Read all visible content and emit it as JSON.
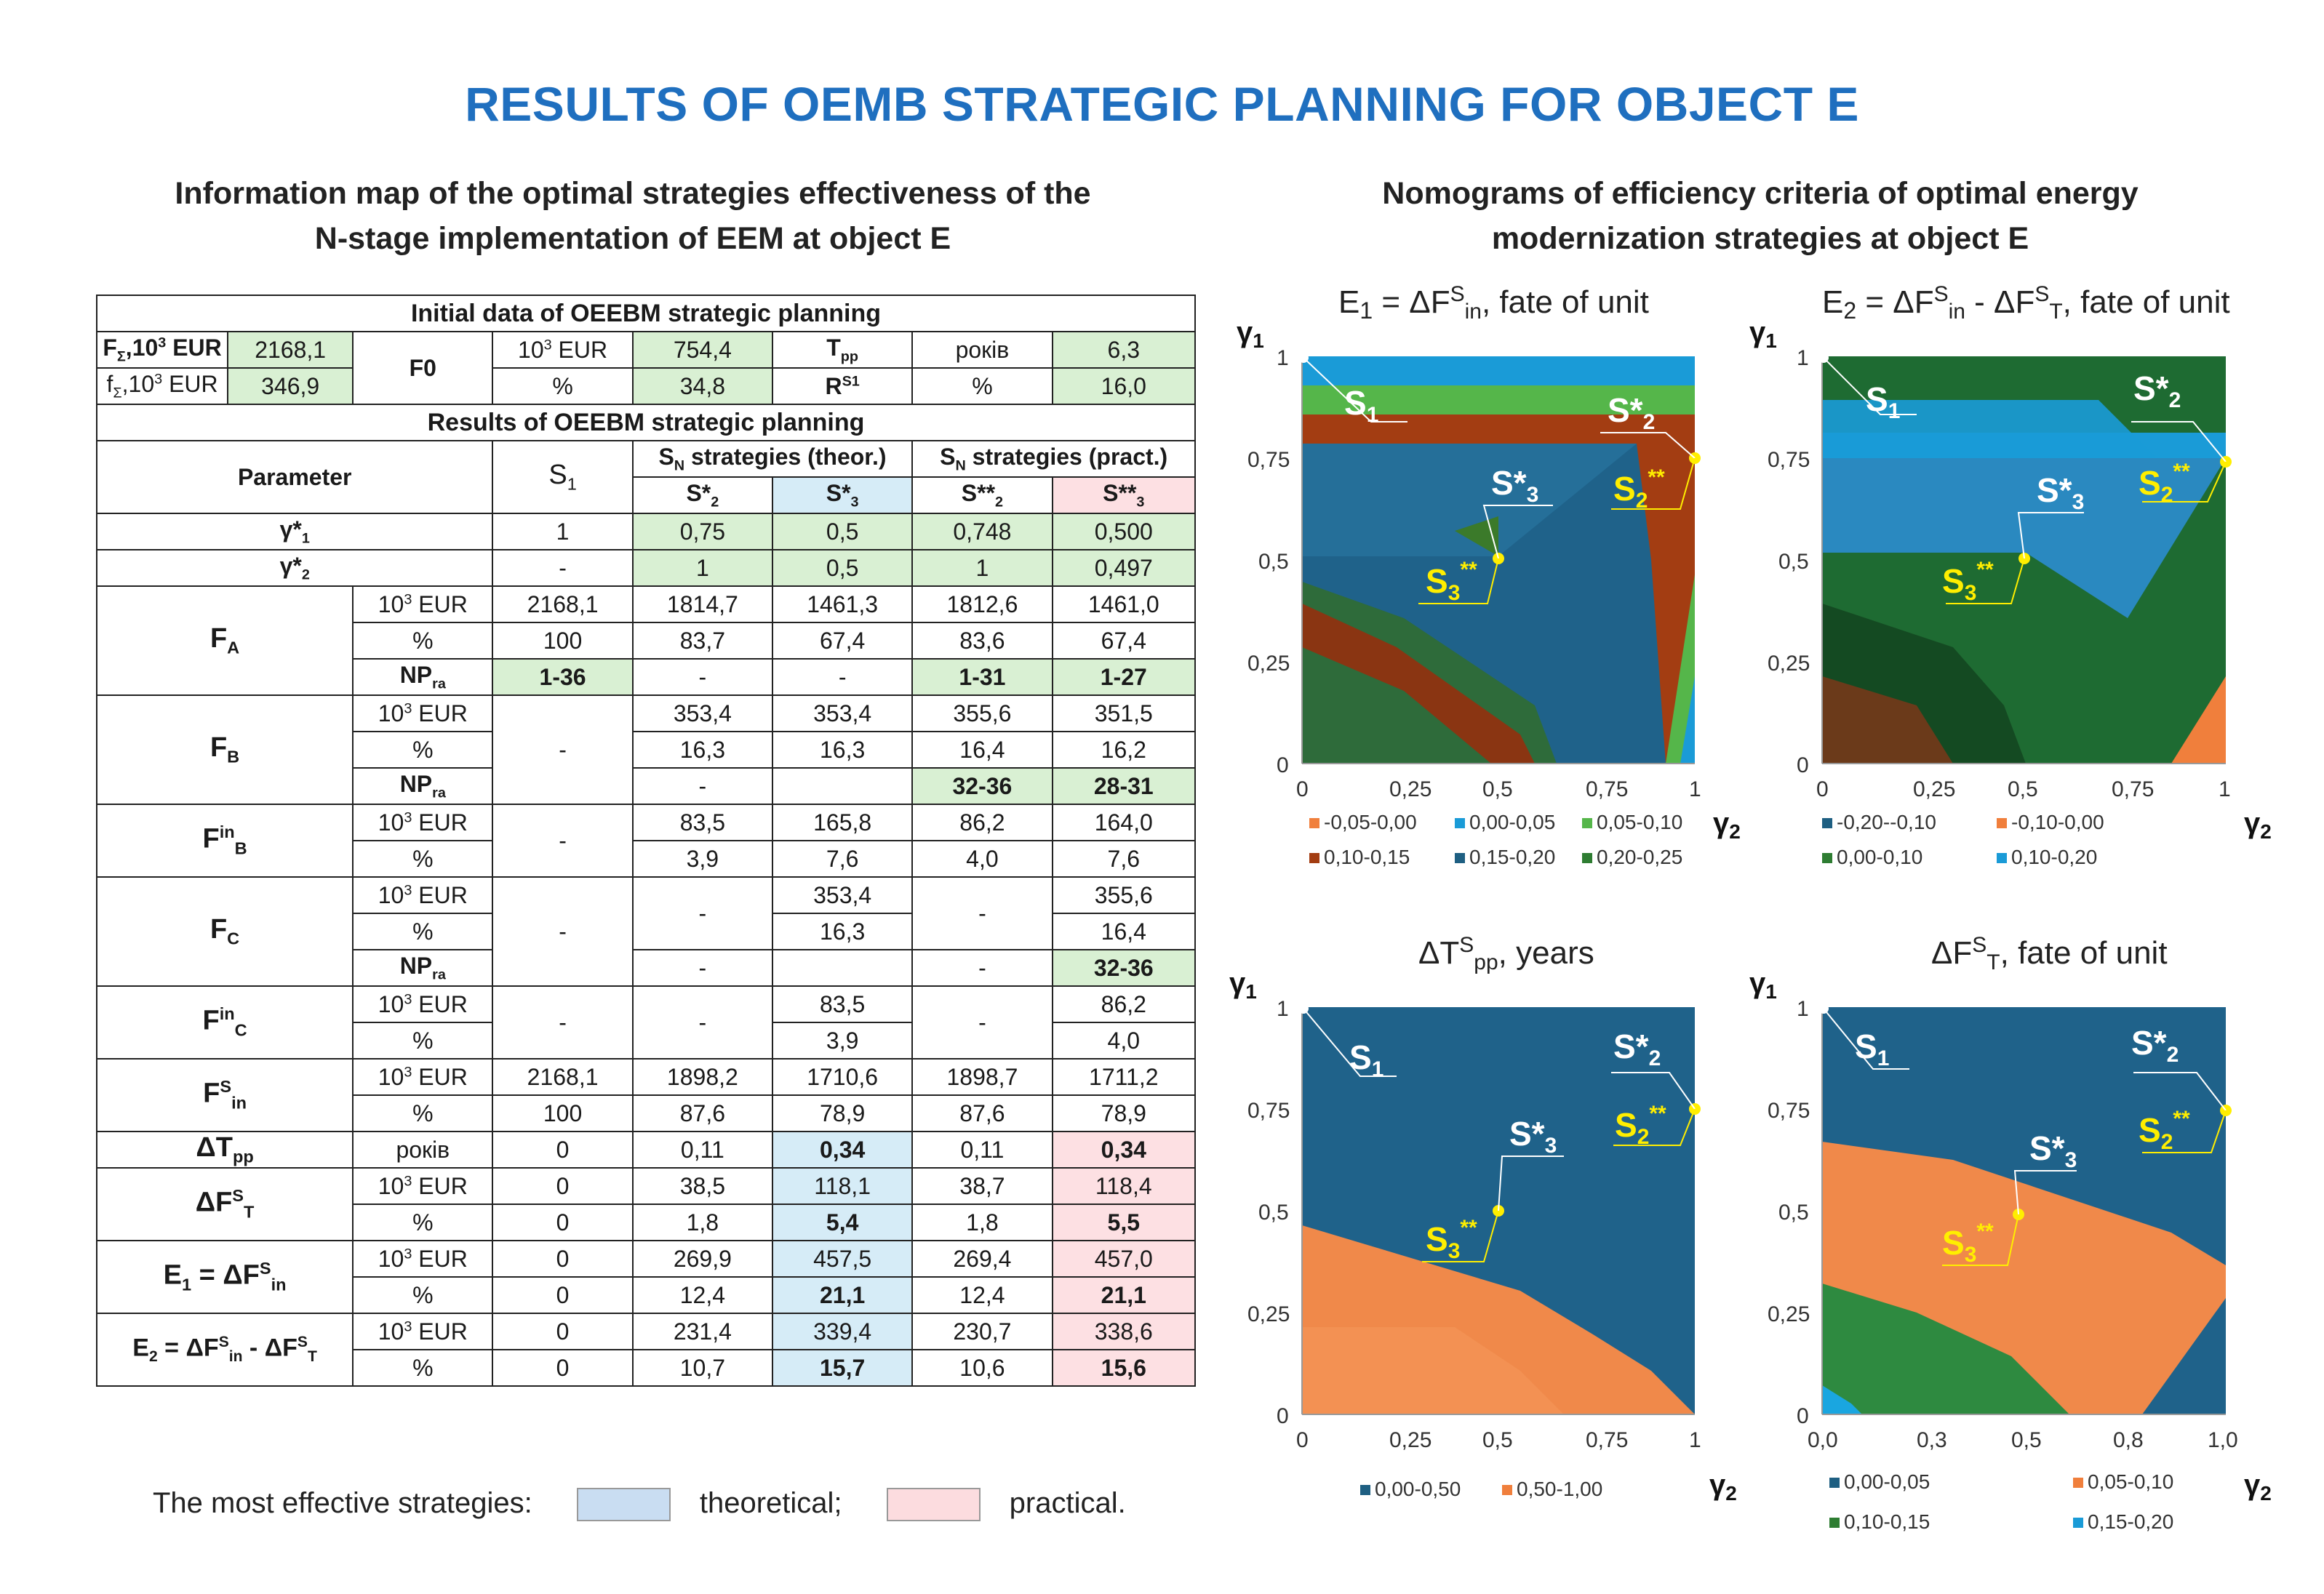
{
  "title": "RESULTS OF OEMB STRATEGIC PLANNING FOR OBJECT E",
  "left_heading": [
    "Information map of the optimal strategies effectiveness of the",
    "N-stage  implementation of EEM at object E"
  ],
  "right_heading": [
    "Nomograms of efficiency criteria of optimal energy",
    "modernization strategies at object E"
  ],
  "table": {
    "initial_title": "Initial data of OEEBM strategic planning",
    "results_title": "Results of OEEBM strategic planning",
    "f_sum_label": "F",
    "f_sum_value": "2168,1",
    "f_small_value": "346,9",
    "unit_eur": "EUR",
    "unit_pct": "%",
    "f0_label": "F0",
    "f0_eur": "754,4",
    "f0_pct": "34,8",
    "tpp_unit": "років",
    "tpp_value": "6,3",
    "rs1_value": "16,0",
    "param_label": "Parameter",
    "sn_theor": "strategies (theor.)",
    "sn_pract": "strategies (pract.)",
    "rows": {
      "g1": [
        "1",
        "0,75",
        "0,5",
        "0,748",
        "0,500"
      ],
      "g2": [
        "-",
        "1",
        "0,5",
        "1",
        "0,497"
      ],
      "fa_eur": [
        "2168,1",
        "1814,7",
        "1461,3",
        "1812,6",
        "1461,0"
      ],
      "fa_pct": [
        "100",
        "83,7",
        "67,4",
        "83,6",
        "67,4"
      ],
      "fa_np": [
        "1-36",
        "-",
        "-",
        "1-31",
        "1-27"
      ],
      "fb_eur": [
        "353,4",
        "353,4",
        "355,6",
        "351,5"
      ],
      "fb_pct": [
        "16,3",
        "16,3",
        "16,4",
        "16,2"
      ],
      "fb_np": [
        "-",
        "",
        "32-36",
        "28-31"
      ],
      "fbin_eur": [
        "83,5",
        "165,8",
        "86,2",
        "164,0"
      ],
      "fbin_pct": [
        "3,9",
        "7,6",
        "4,0",
        "7,6"
      ],
      "fc_eur": [
        "353,4",
        "355,6"
      ],
      "fc_pct": [
        "16,3",
        "16,4"
      ],
      "fc_np": [
        "-",
        "",
        "-",
        "32-36"
      ],
      "fcin_eur": [
        "83,5",
        "86,2"
      ],
      "fcin_pct": [
        "3,9",
        "4,0"
      ],
      "fsin_eur": [
        "2168,1",
        "1898,2",
        "1710,6",
        "1898,7",
        "1711,2"
      ],
      "fsin_pct": [
        "100",
        "87,6",
        "78,9",
        "87,6",
        "78,9"
      ],
      "dtpp": [
        "0",
        "0,11",
        "0,34",
        "0,11",
        "0,34"
      ],
      "dfst_eur": [
        "0",
        "38,5",
        "118,1",
        "38,7",
        "118,4"
      ],
      "dfst_pct": [
        "0",
        "1,8",
        "5,4",
        "1,8",
        "5,5"
      ],
      "e1_eur": [
        "0",
        "269,9",
        "457,5",
        "269,4",
        "457,0"
      ],
      "e1_pct": [
        "0",
        "12,4",
        "21,1",
        "12,4",
        "21,1"
      ],
      "e2_eur": [
        "0",
        "231,4",
        "339,4",
        "230,7",
        "338,6"
      ],
      "e2_pct": [
        "0",
        "10,7",
        "15,7",
        "10,6",
        "15,6"
      ]
    }
  },
  "legend": {
    "label": "The most effective strategies:",
    "theoretical": "theoretical;",
    "practical": "practical.",
    "theoretical_color": "#c9ddf2",
    "practical_color": "#fcdcdf"
  },
  "chart_data": [
    {
      "type": "heatmap",
      "title": "E₁ = ΔFˢin, fate of unit",
      "x": "γ2",
      "y": "γ1",
      "xticks": [
        "0",
        "0,25",
        "0,5",
        "0,75",
        "1"
      ],
      "yticks": [
        "0",
        "0,25",
        "0,5",
        "0,75",
        "1"
      ],
      "legend": [
        "-0,05-0,00",
        "0,00-0,05",
        "0,05-0,10",
        "0,10-0,15",
        "0,15-0,20",
        "0,20-0,25"
      ],
      "colors": [
        "#f07f3c",
        "#1a9bd7",
        "#55b64a",
        "#a33d12",
        "#1e5f82",
        "#2e7d32"
      ],
      "points": {
        "S1": [
          0,
          1
        ],
        "S2*": [
          1,
          0.75
        ],
        "S3*": [
          0.5,
          0.5
        ],
        "S2**": [
          1,
          0.748
        ],
        "S3**": [
          0.497,
          0.5
        ]
      }
    },
    {
      "type": "heatmap",
      "title": "E₂ = ΔFˢin - ΔFˢT, fate of unit",
      "x": "γ2",
      "y": "γ1",
      "xticks": [
        "0",
        "0,25",
        "0,5",
        "0,75",
        "1"
      ],
      "yticks": [
        "0",
        "0,25",
        "0,5",
        "0,75",
        "1"
      ],
      "legend": [
        "-0,20--0,10",
        "-0,10-0,00",
        "0,00-0,10",
        "0,10-0,20"
      ],
      "colors": [
        "#1e5f82",
        "#f07f3c",
        "#2e7d32",
        "#1a9bd7"
      ]
    },
    {
      "type": "heatmap",
      "title": "ΔTˢpp, years",
      "x": "γ2",
      "y": "γ1",
      "xticks": [
        "0",
        "0,25",
        "0,5",
        "0,75",
        "1"
      ],
      "yticks": [
        "0",
        "0,25",
        "0,5",
        "0,75",
        "1"
      ],
      "legend": [
        "0,00-0,50",
        "0,50-1,00"
      ],
      "colors": [
        "#1e5f82",
        "#f07f3c"
      ]
    },
    {
      "type": "heatmap",
      "title": "ΔFˢT, fate of unit",
      "x": "γ2",
      "y": "γ1",
      "xticks": [
        "0,0",
        "0,3",
        "0,5",
        "0,8",
        "1,0"
      ],
      "yticks": [
        "0",
        "0,25",
        "0,5",
        "0,75",
        "1"
      ],
      "legend": [
        "0,00-0,05",
        "0,05-0,10",
        "0,10-0,15",
        "0,15-0,20"
      ],
      "colors": [
        "#1e5f82",
        "#f07f3c",
        "#2e7d32",
        "#1a9bd7"
      ]
    }
  ]
}
